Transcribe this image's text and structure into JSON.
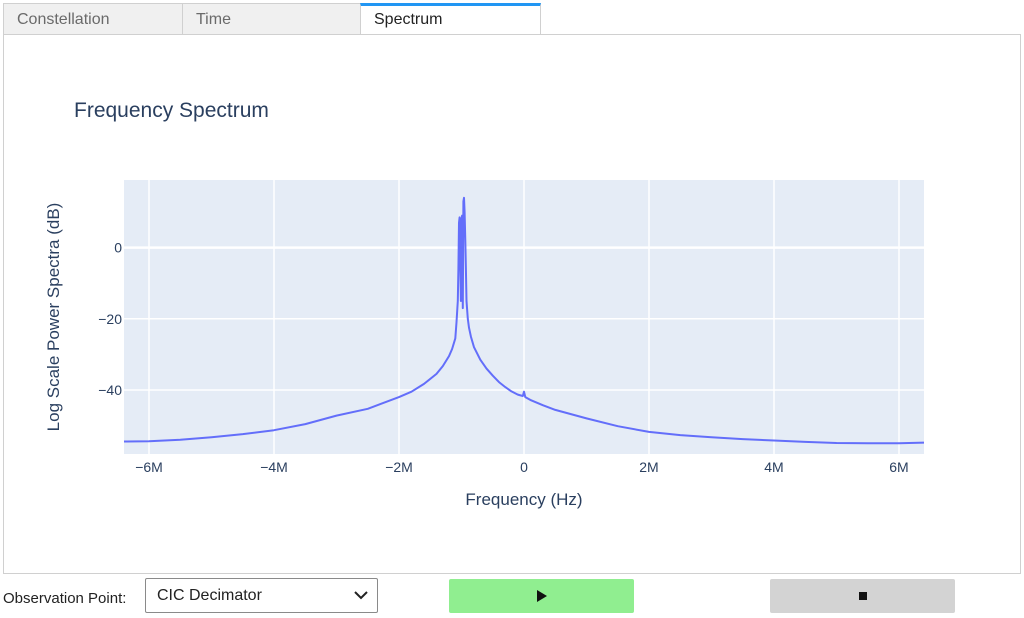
{
  "tabs": [
    {
      "label": "Constellation",
      "active": false
    },
    {
      "label": "Time",
      "active": false
    },
    {
      "label": "Spectrum",
      "active": true
    }
  ],
  "controls": {
    "observation_label": "Observation Point:",
    "observation_value": "CIC Decimator",
    "play_icon": "play-icon",
    "stop_icon": "stop-icon",
    "play_color": "#90ee90",
    "stop_color": "#d3d3d3"
  },
  "chart_data": {
    "type": "line",
    "title": "Frequency Spectrum",
    "xlabel": "Frequency (Hz)",
    "ylabel": "Log Scale Power Spectra (dB)",
    "xlim": [
      -6400000,
      6400000
    ],
    "ylim": [
      -58,
      19
    ],
    "xticks": [
      -6000000,
      -4000000,
      -2000000,
      0,
      2000000,
      4000000,
      6000000
    ],
    "xtick_labels": [
      "−6M",
      "−4M",
      "−2M",
      "0",
      "2M",
      "4M",
      "6M"
    ],
    "yticks": [
      0,
      -20,
      -40
    ],
    "ytick_labels": [
      "0",
      "−20",
      "−40"
    ],
    "grid": true,
    "plot_bgcolor": "#e5ecf6",
    "series": [
      {
        "color": "#636efa",
        "x": [
          -6400000,
          -6000000,
          -5500000,
          -5000000,
          -4500000,
          -4000000,
          -3500000,
          -3000000,
          -2500000,
          -2000000,
          -1800000,
          -1600000,
          -1400000,
          -1300000,
          -1200000,
          -1150000,
          -1100000,
          -1080000,
          -1060000,
          -1050000,
          -1040000,
          -1030000,
          -1020000,
          -1010000,
          -1000000,
          -990000,
          -980000,
          -970000,
          -960000,
          -950000,
          -940000,
          -930000,
          -920000,
          -900000,
          -880000,
          -850000,
          -800000,
          -700000,
          -600000,
          -500000,
          -400000,
          -300000,
          -200000,
          -100000,
          -20000,
          0,
          20000,
          100000,
          300000,
          500000,
          1000000,
          1500000,
          2000000,
          2500000,
          3000000,
          3500000,
          4000000,
          4500000,
          5000000,
          5500000,
          6000000,
          6400000
        ],
        "y": [
          -54.5,
          -54.4,
          -54.0,
          -53.3,
          -52.4,
          -51.3,
          -49.6,
          -47.2,
          -45.3,
          -42.0,
          -40.5,
          -38.3,
          -35.5,
          -33.3,
          -30.5,
          -28.5,
          -25.5,
          -21.0,
          -15.0,
          -6.0,
          7.0,
          8.5,
          -5.0,
          -15.0,
          8.0,
          9.0,
          -17.0,
          13.0,
          14.0,
          10.0,
          2.0,
          -6.0,
          -15.0,
          -20.0,
          -22.5,
          -25.0,
          -28.0,
          -31.5,
          -34.0,
          -36.0,
          -37.8,
          -39.2,
          -40.4,
          -41.3,
          -41.7,
          -40.5,
          -42.0,
          -42.8,
          -44.3,
          -45.6,
          -48.0,
          -50.2,
          -51.8,
          -52.7,
          -53.3,
          -53.8,
          -54.2,
          -54.6,
          -54.9,
          -55.0,
          -55.0,
          -54.8
        ]
      }
    ]
  }
}
